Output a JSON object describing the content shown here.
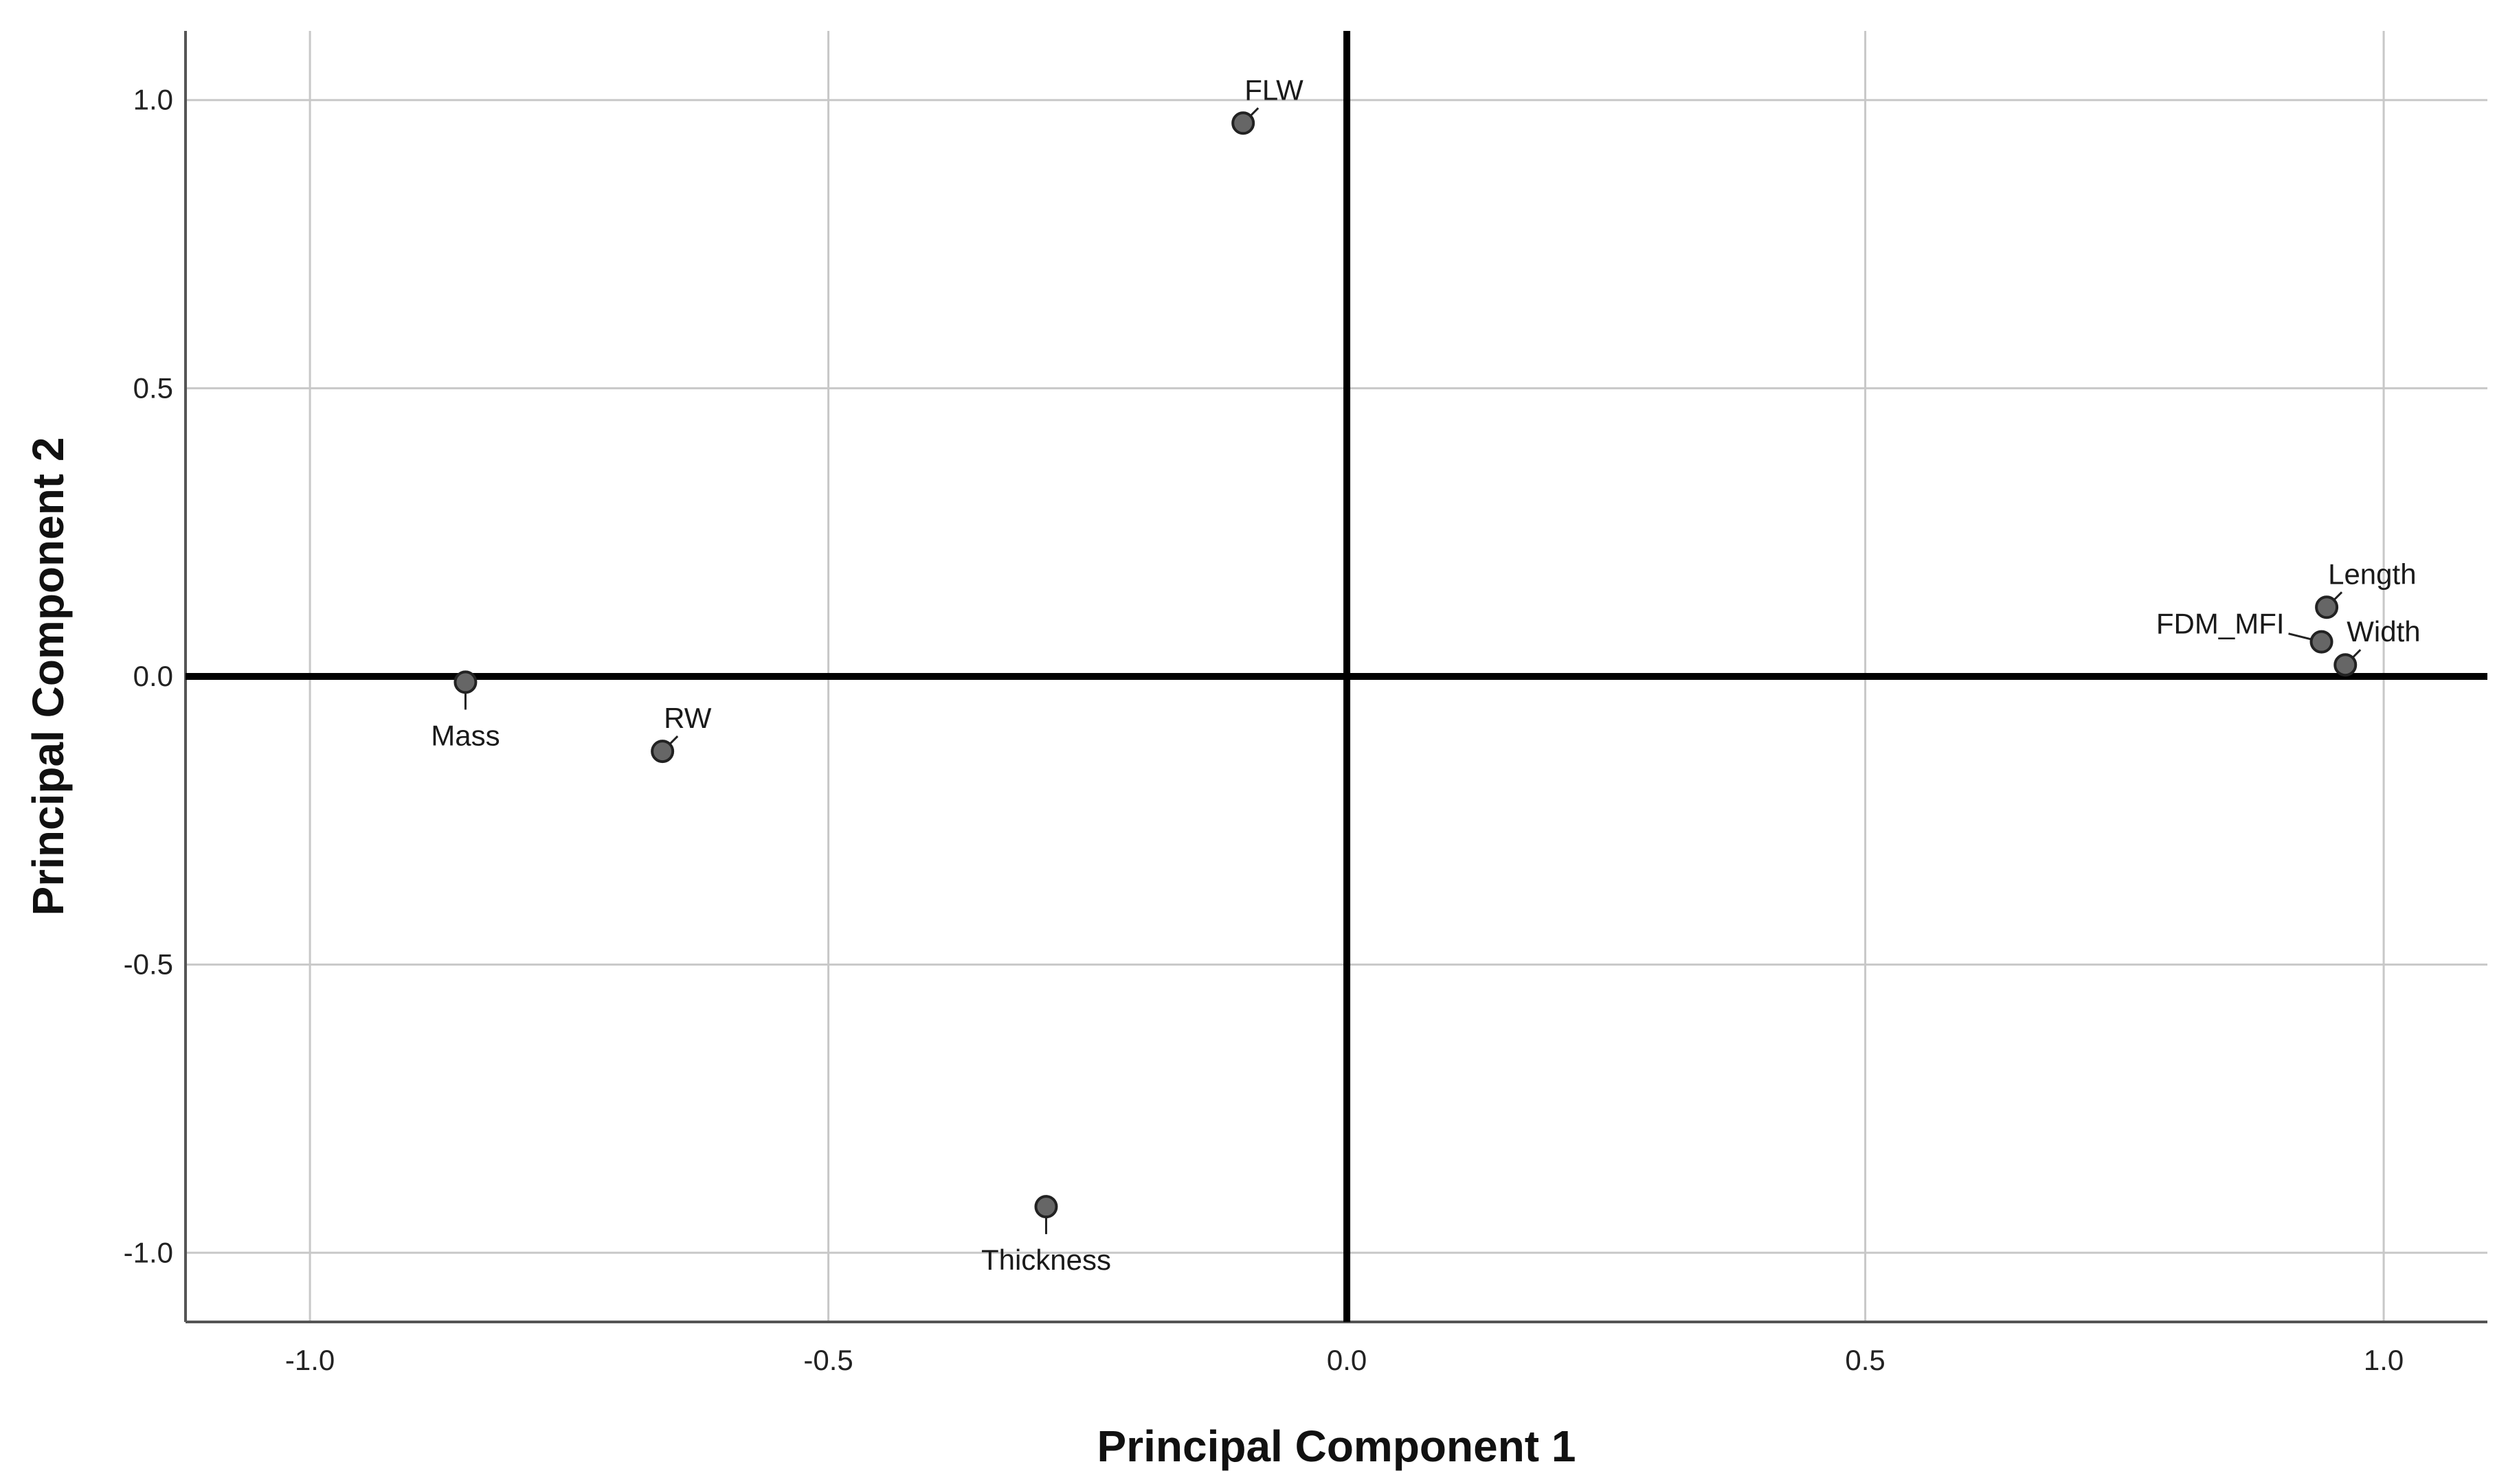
{
  "chart_data": {
    "type": "scatter",
    "title": "",
    "xlabel": "Principal Component 1",
    "ylabel": "Principal Component 2",
    "xlim": [
      -1.12,
      1.1
    ],
    "ylim": [
      -1.12,
      1.12
    ],
    "grid": true,
    "legend": "none",
    "reference_lines": {
      "x": 0.0,
      "y": 0.0
    },
    "x_ticks": [
      -1.0,
      -0.5,
      0.0,
      0.5,
      1.0
    ],
    "y_ticks": [
      1.0,
      0.5,
      0.0,
      -0.5,
      -1.0
    ],
    "x_tick_labels": [
      "-1.0",
      "-0.5",
      "0.0",
      "0.5",
      "1.0"
    ],
    "y_tick_labels": [
      "1.0",
      "0.5",
      "0.0",
      "-0.5",
      "-1.0"
    ],
    "points": [
      {
        "label": "FLW",
        "x": -0.1,
        "y": 0.96,
        "label_pos": "above-right"
      },
      {
        "label": "Length",
        "x": 0.945,
        "y": 0.12,
        "label_pos": "above-right"
      },
      {
        "label": "FDM_MFI",
        "x": 0.94,
        "y": 0.06,
        "label_pos": "left"
      },
      {
        "label": "Width",
        "x": 0.963,
        "y": 0.02,
        "label_pos": "above-right"
      },
      {
        "label": "Mass",
        "x": -0.85,
        "y": -0.01,
        "label_pos": "below"
      },
      {
        "label": "RW",
        "x": -0.66,
        "y": -0.13,
        "label_pos": "above-right"
      },
      {
        "label": "Thickness",
        "x": -0.29,
        "y": -0.92,
        "label_pos": "below"
      }
    ],
    "colors": {
      "marker_fill": "#666666",
      "marker_stroke": "#222222",
      "grid": "#c8c8c8",
      "axis": "#000000"
    }
  }
}
